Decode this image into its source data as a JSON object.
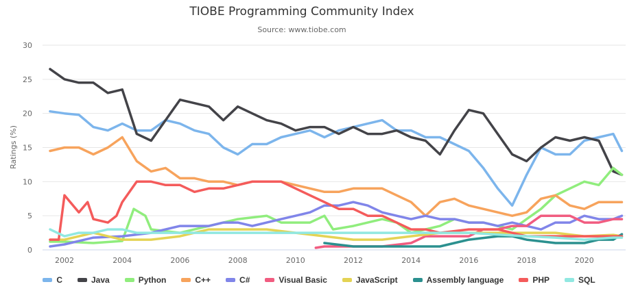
{
  "chart_data": {
    "type": "line",
    "title": "TIOBE Programming Community Index",
    "subtitle": "Source: www.tiobe.com",
    "ylabel": "Ratings (%)",
    "xlabel": "",
    "ylim": [
      0,
      30
    ],
    "yticks": [
      "0",
      "5",
      "10",
      "15",
      "20",
      "25",
      "30"
    ],
    "xticks": [
      "2002",
      "2004",
      "2006",
      "2008",
      "2010",
      "2012",
      "2014",
      "2016",
      "2018",
      "2020"
    ],
    "grid": true,
    "legend": "bottom",
    "series": [
      {
        "name": "C",
        "color": "#7cb5ec",
        "x": [
          2001.5,
          2002,
          2002.5,
          2003,
          2003.5,
          2004,
          2004.5,
          2005,
          2005.5,
          2006,
          2006.5,
          2007,
          2007.5,
          2008,
          2008.5,
          2009,
          2009.5,
          2010,
          2010.5,
          2011,
          2011.5,
          2012,
          2012.5,
          2013,
          2013.5,
          2014,
          2014.5,
          2015,
          2015.5,
          2016,
          2016.5,
          2017,
          2017.5,
          2018,
          2018.5,
          2019,
          2019.5,
          2020,
          2020.5,
          2021,
          2021.3
        ],
        "y": [
          20.3,
          20,
          19.8,
          18,
          17.5,
          18.5,
          17.5,
          17.5,
          19,
          18.5,
          17.5,
          17,
          15,
          14,
          15.5,
          15.5,
          16.5,
          17,
          17.5,
          16.5,
          17.5,
          18,
          18.5,
          19,
          17.5,
          17.5,
          16.5,
          16.5,
          15.5,
          14.5,
          12,
          9,
          6.5,
          11,
          15,
          14,
          14,
          16,
          16.5,
          17,
          14.5
        ]
      },
      {
        "name": "Java",
        "color": "#434348",
        "x": [
          2001.5,
          2002,
          2002.5,
          2003,
          2003.5,
          2004,
          2004.5,
          2005,
          2005.5,
          2006,
          2006.5,
          2007,
          2007.5,
          2008,
          2008.5,
          2009,
          2009.5,
          2010,
          2010.5,
          2011,
          2011.5,
          2012,
          2012.5,
          2013,
          2013.5,
          2014,
          2014.5,
          2015,
          2015.5,
          2016,
          2016.5,
          2017,
          2017.5,
          2018,
          2018.5,
          2019,
          2019.5,
          2020,
          2020.5,
          2021,
          2021.3
        ],
        "y": [
          26.5,
          25,
          24.5,
          24.5,
          23,
          23.5,
          17,
          16,
          19,
          22,
          21.5,
          21,
          19,
          21,
          20,
          19,
          18.5,
          17.5,
          18,
          18,
          17,
          18,
          17,
          17,
          17.5,
          16.5,
          16,
          14,
          17.5,
          20.5,
          20,
          17,
          14,
          13,
          15,
          16.5,
          16,
          16.5,
          16,
          11.5,
          11
        ]
      },
      {
        "name": "Python",
        "color": "#90ed7d",
        "x": [
          2001.5,
          2002,
          2003,
          2004,
          2004.4,
          2004.8,
          2005,
          2006,
          2007,
          2008,
          2009,
          2009.5,
          2010,
          2010.5,
          2011,
          2011.3,
          2012,
          2013,
          2013.5,
          2014,
          2015,
          2015.5,
          2016,
          2016.5,
          2017,
          2017.5,
          2018,
          2018.5,
          2019,
          2019.5,
          2020,
          2020.5,
          2021,
          2021.3
        ],
        "y": [
          1.2,
          1.2,
          1.0,
          1.3,
          6,
          5,
          3,
          2.5,
          3.5,
          4.5,
          5,
          4,
          4,
          4,
          5,
          3,
          3.5,
          4.5,
          4,
          2.5,
          3.5,
          4.5,
          4,
          4,
          3.5,
          3,
          4.5,
          6,
          8,
          9,
          10,
          9.5,
          12,
          11
        ]
      },
      {
        "name": "C++",
        "color": "#f7a35c",
        "x": [
          2001.5,
          2002,
          2002.5,
          2003,
          2003.5,
          2004,
          2004.5,
          2005,
          2005.5,
          2006,
          2006.5,
          2007,
          2007.5,
          2008,
          2008.5,
          2009,
          2009.5,
          2010,
          2010.5,
          2011,
          2011.5,
          2012,
          2012.5,
          2013,
          2013.5,
          2014,
          2014.5,
          2015,
          2015.5,
          2016,
          2016.5,
          2017,
          2017.5,
          2018,
          2018.5,
          2019,
          2019.5,
          2020,
          2020.5,
          2021,
          2021.3
        ],
        "y": [
          14.5,
          15,
          15,
          14,
          15,
          16.5,
          13,
          11.5,
          12,
          10.5,
          10.5,
          10,
          10,
          9.5,
          10,
          10,
          10,
          9.5,
          9,
          8.5,
          8.5,
          9,
          9,
          9,
          8,
          7,
          5,
          7,
          7.5,
          6.5,
          6,
          5.5,
          5,
          5.5,
          7.5,
          8,
          6.5,
          6,
          7,
          7,
          7
        ]
      },
      {
        "name": "C#",
        "color": "#8085e9",
        "x": [
          2001.5,
          2002,
          2003,
          2004,
          2005,
          2005.5,
          2006,
          2006.5,
          2007,
          2007.5,
          2008,
          2008.5,
          2009,
          2009.5,
          2010,
          2010.5,
          2011,
          2011.5,
          2012,
          2012.5,
          2013,
          2013.5,
          2014,
          2014.5,
          2015,
          2015.5,
          2016,
          2016.5,
          2017,
          2017.5,
          2018,
          2018.5,
          2019,
          2019.5,
          2020,
          2020.5,
          2021,
          2021.3
        ],
        "y": [
          0.5,
          0.8,
          1.8,
          2,
          2.5,
          3,
          3.5,
          3.5,
          3.5,
          4,
          4,
          3.5,
          4,
          4.5,
          5,
          5.5,
          6.5,
          6.5,
          7,
          6.5,
          5.5,
          5,
          4.5,
          5,
          4.5,
          4.5,
          4,
          4,
          3.5,
          4,
          3.5,
          3,
          4,
          4,
          5,
          4.5,
          4.5,
          5
        ]
      },
      {
        "name": "Visual Basic",
        "color": "#f15c80",
        "x": [
          2010.7,
          2011,
          2012,
          2013,
          2014,
          2014.5,
          2015,
          2016,
          2016.5,
          2017,
          2017.5,
          2018,
          2018.5,
          2019,
          2019.5,
          2020,
          2020.5,
          2021,
          2021.3
        ],
        "y": [
          0.3,
          0.5,
          0.5,
          0.5,
          1,
          2,
          2,
          2,
          3,
          3,
          3.5,
          3.5,
          5,
          5,
          5,
          4,
          4,
          4.5,
          4.5
        ]
      },
      {
        "name": "JavaScript",
        "color": "#e4d354",
        "x": [
          2001.5,
          2002,
          2003,
          2004,
          2005,
          2006,
          2007,
          2008,
          2009,
          2010,
          2011,
          2012,
          2013,
          2014,
          2015,
          2016,
          2017,
          2018,
          2019,
          2020,
          2021,
          2021.3
        ],
        "y": [
          1.5,
          1.5,
          2.5,
          1.5,
          1.5,
          2,
          3,
          3,
          3,
          2.5,
          2,
          1.5,
          1.5,
          2,
          2.5,
          2.5,
          2.5,
          2.5,
          2.5,
          2,
          2.2,
          2
        ]
      },
      {
        "name": "Assembly language",
        "color": "#2b908f",
        "x": [
          2011,
          2012,
          2013,
          2014,
          2015,
          2015.5,
          2016,
          2017,
          2017.5,
          2018,
          2019,
          2020,
          2020.5,
          2021,
          2021.3
        ],
        "y": [
          1,
          0.5,
          0.5,
          0.5,
          0.5,
          1,
          1.5,
          2,
          2,
          1.5,
          1,
          1,
          1.5,
          1.5,
          2.3
        ]
      },
      {
        "name": "PHP",
        "color": "#f45b5b",
        "x": [
          2001.5,
          2001.8,
          2002,
          2002.5,
          2002.8,
          2003,
          2003.5,
          2003.8,
          2004,
          2004.5,
          2005,
          2005.5,
          2006,
          2006.5,
          2007,
          2007.5,
          2008,
          2008.5,
          2009,
          2009.5,
          2010,
          2010.5,
          2011,
          2011.5,
          2012,
          2012.5,
          2013,
          2013.5,
          2014,
          2014.5,
          2015,
          2016,
          2017,
          2018,
          2019,
          2020,
          2021,
          2021.3
        ],
        "y": [
          1.5,
          1.5,
          8,
          5.5,
          7,
          4.5,
          4,
          5,
          7,
          10,
          10,
          9.5,
          9.5,
          8.5,
          9,
          9,
          9.5,
          10,
          10,
          10,
          9,
          8,
          7,
          6,
          6,
          5,
          5,
          4,
          3,
          3,
          2.5,
          3,
          3,
          2,
          2,
          2,
          2,
          2
        ]
      },
      {
        "name": "SQL",
        "color": "#91e8e1",
        "x": [
          2001.5,
          2002,
          2002.5,
          2003,
          2003.5,
          2004,
          2004.5,
          2006,
          2008,
          2010,
          2012,
          2014,
          2016,
          2018,
          2019,
          2020,
          2021,
          2021.3
        ],
        "y": [
          3,
          2,
          2.5,
          2.5,
          3,
          3,
          2.5,
          2.5,
          2.5,
          2.5,
          2.5,
          2.5,
          2.5,
          2,
          1.8,
          1.5,
          1.8,
          1.8
        ]
      }
    ]
  }
}
